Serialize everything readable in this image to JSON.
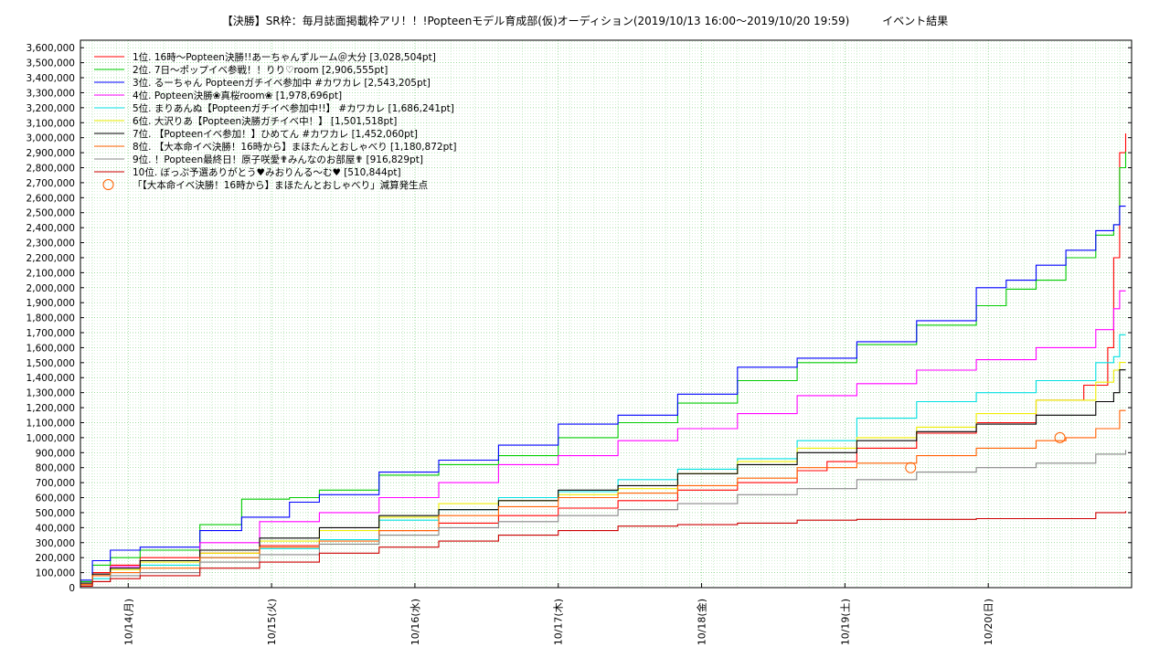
{
  "chart_data": {
    "type": "line",
    "title": "【決勝】SR枠：毎月誌面掲載枠アリ！！!Popteenモデル育成部(仮)オーディション(2019/10/13 16:00～2019/10/20 19:59)　　　イベント結果",
    "xlabel": "",
    "ylabel": "",
    "ylim": [
      0,
      3650000
    ],
    "xlim": [
      "2019/10/13 16:00",
      "2019/10/20 20:00"
    ],
    "x_tick_labels": [
      "10/14(月)",
      "10/15(火)",
      "10/16(水)",
      "10/17(木)",
      "10/18(金)",
      "10/19(土)",
      "10/20(日)"
    ],
    "x_tick_values": [
      8,
      32,
      56,
      80,
      104,
      128,
      152
    ],
    "y_ticks": [
      0,
      100000,
      200000,
      300000,
      400000,
      500000,
      600000,
      700000,
      800000,
      900000,
      1000000,
      1100000,
      1200000,
      1300000,
      1400000,
      1500000,
      1600000,
      1700000,
      1800000,
      1900000,
      2000000,
      2100000,
      2200000,
      2300000,
      2400000,
      2500000,
      2600000,
      2700000,
      2800000,
      2900000,
      3000000,
      3100000,
      3200000,
      3300000,
      3400000,
      3500000,
      3600000
    ],
    "y_tick_labels": [
      "0",
      "100,000",
      "200,000",
      "300,000",
      "400,000",
      "500,000",
      "600,000",
      "700,000",
      "800,000",
      "900,000",
      "1,000,000",
      "1,100,000",
      "1,200,000",
      "1,300,000",
      "1,400,000",
      "1,500,000",
      "1,600,000",
      "1,700,000",
      "1,800,000",
      "1,900,000",
      "2,000,000",
      "2,100,000",
      "2,200,000",
      "2,300,000",
      "2,400,000",
      "2,500,000",
      "2,600,000",
      "2,700,000",
      "2,800,000",
      "2,900,000",
      "3,000,000",
      "3,100,000",
      "3,200,000",
      "3,300,000",
      "3,400,000",
      "3,500,000",
      "3,600,000"
    ],
    "grid": true,
    "legend_position": "top-left",
    "x_unit_note": "x values are hours after 2019/10/13 16:00",
    "series": [
      {
        "name": "1位. 16時～Popteen決勝!!あーちゃんずルーム＠大分 [3,028,504pt]",
        "color": "#ff0000",
        "points": [
          [
            0,
            30000
          ],
          [
            2,
            100000
          ],
          [
            5,
            150000
          ],
          [
            10,
            200000
          ],
          [
            20,
            230000
          ],
          [
            30,
            280000
          ],
          [
            40,
            320000
          ],
          [
            50,
            380000
          ],
          [
            60,
            430000
          ],
          [
            70,
            480000
          ],
          [
            80,
            530000
          ],
          [
            90,
            580000
          ],
          [
            100,
            650000
          ],
          [
            110,
            700000
          ],
          [
            120,
            780000
          ],
          [
            125,
            840000
          ],
          [
            130,
            930000
          ],
          [
            140,
            1030000
          ],
          [
            150,
            1100000
          ],
          [
            160,
            1250000
          ],
          [
            168,
            1350000
          ],
          [
            172,
            1600000
          ],
          [
            173,
            2200000
          ],
          [
            174,
            2900000
          ],
          [
            175,
            3028504
          ]
        ]
      },
      {
        "name": "2位. 7日～ポップイベ参戦！！りり♡room [2,906,555pt]",
        "color": "#00cc00",
        "points": [
          [
            0,
            40000
          ],
          [
            2,
            150000
          ],
          [
            5,
            200000
          ],
          [
            10,
            250000
          ],
          [
            20,
            420000
          ],
          [
            27,
            590000
          ],
          [
            35,
            600000
          ],
          [
            40,
            650000
          ],
          [
            50,
            750000
          ],
          [
            60,
            820000
          ],
          [
            70,
            880000
          ],
          [
            80,
            1000000
          ],
          [
            90,
            1100000
          ],
          [
            100,
            1230000
          ],
          [
            110,
            1380000
          ],
          [
            120,
            1500000
          ],
          [
            130,
            1620000
          ],
          [
            140,
            1750000
          ],
          [
            150,
            1880000
          ],
          [
            155,
            1990000
          ],
          [
            160,
            2050000
          ],
          [
            165,
            2200000
          ],
          [
            170,
            2350000
          ],
          [
            173,
            2420000
          ],
          [
            174,
            2800000
          ],
          [
            175,
            2906555
          ]
        ]
      },
      {
        "name": "3位. るーちゃん Popteenガチイベ参加中 #カワカレ [2,543,205pt]",
        "color": "#0000ff",
        "points": [
          [
            0,
            50000
          ],
          [
            2,
            180000
          ],
          [
            5,
            250000
          ],
          [
            10,
            270000
          ],
          [
            20,
            380000
          ],
          [
            27,
            470000
          ],
          [
            35,
            570000
          ],
          [
            40,
            620000
          ],
          [
            50,
            770000
          ],
          [
            60,
            850000
          ],
          [
            70,
            950000
          ],
          [
            80,
            1090000
          ],
          [
            90,
            1150000
          ],
          [
            100,
            1290000
          ],
          [
            110,
            1470000
          ],
          [
            120,
            1530000
          ],
          [
            130,
            1640000
          ],
          [
            140,
            1780000
          ],
          [
            150,
            2000000
          ],
          [
            155,
            2050000
          ],
          [
            160,
            2150000
          ],
          [
            165,
            2250000
          ],
          [
            170,
            2380000
          ],
          [
            173,
            2420000
          ],
          [
            174,
            2543205
          ],
          [
            175,
            2543205
          ]
        ]
      },
      {
        "name": "4位. Popteen決勝❀真桜room❀ [1,978,696pt]",
        "color": "#ff00ff",
        "points": [
          [
            0,
            20000
          ],
          [
            2,
            80000
          ],
          [
            5,
            140000
          ],
          [
            10,
            180000
          ],
          [
            20,
            300000
          ],
          [
            30,
            440000
          ],
          [
            40,
            500000
          ],
          [
            50,
            600000
          ],
          [
            60,
            700000
          ],
          [
            70,
            820000
          ],
          [
            80,
            880000
          ],
          [
            90,
            980000
          ],
          [
            100,
            1060000
          ],
          [
            110,
            1160000
          ],
          [
            120,
            1280000
          ],
          [
            130,
            1360000
          ],
          [
            140,
            1450000
          ],
          [
            150,
            1520000
          ],
          [
            160,
            1600000
          ],
          [
            170,
            1720000
          ],
          [
            173,
            1860000
          ],
          [
            174,
            1978696
          ],
          [
            175,
            1978696
          ]
        ]
      },
      {
        "name": "5位. まりあんぬ【Popteenガチイベ参加中!!】 #カワカレ [1,686,241pt]",
        "color": "#00e0e0",
        "points": [
          [
            0,
            10000
          ],
          [
            2,
            60000
          ],
          [
            5,
            100000
          ],
          [
            10,
            150000
          ],
          [
            20,
            200000
          ],
          [
            30,
            260000
          ],
          [
            40,
            320000
          ],
          [
            50,
            450000
          ],
          [
            60,
            520000
          ],
          [
            70,
            600000
          ],
          [
            80,
            640000
          ],
          [
            90,
            720000
          ],
          [
            100,
            790000
          ],
          [
            110,
            860000
          ],
          [
            120,
            980000
          ],
          [
            130,
            1130000
          ],
          [
            140,
            1240000
          ],
          [
            150,
            1300000
          ],
          [
            160,
            1380000
          ],
          [
            170,
            1500000
          ],
          [
            173,
            1540000
          ],
          [
            174,
            1686241
          ],
          [
            175,
            1686241
          ]
        ]
      },
      {
        "name": "6位. 大沢りあ【Popteen決勝ガチイベ中！】 [1,501,518pt]",
        "color": "#eeee00",
        "points": [
          [
            0,
            20000
          ],
          [
            2,
            80000
          ],
          [
            5,
            120000
          ],
          [
            10,
            170000
          ],
          [
            20,
            230000
          ],
          [
            30,
            310000
          ],
          [
            40,
            380000
          ],
          [
            50,
            470000
          ],
          [
            60,
            560000
          ],
          [
            70,
            580000
          ],
          [
            80,
            620000
          ],
          [
            90,
            660000
          ],
          [
            100,
            760000
          ],
          [
            110,
            840000
          ],
          [
            120,
            930000
          ],
          [
            130,
            1000000
          ],
          [
            140,
            1070000
          ],
          [
            150,
            1160000
          ],
          [
            160,
            1250000
          ],
          [
            170,
            1370000
          ],
          [
            173,
            1450000
          ],
          [
            174,
            1501518
          ],
          [
            175,
            1501518
          ]
        ]
      },
      {
        "name": "7位. 【Popteenイベ参加！】ひめてん #カワカレ [1,452,060pt]",
        "color": "#000000",
        "points": [
          [
            0,
            30000
          ],
          [
            2,
            90000
          ],
          [
            5,
            130000
          ],
          [
            10,
            180000
          ],
          [
            20,
            250000
          ],
          [
            30,
            330000
          ],
          [
            40,
            400000
          ],
          [
            50,
            480000
          ],
          [
            60,
            520000
          ],
          [
            70,
            580000
          ],
          [
            80,
            650000
          ],
          [
            90,
            680000
          ],
          [
            100,
            760000
          ],
          [
            110,
            820000
          ],
          [
            120,
            900000
          ],
          [
            130,
            980000
          ],
          [
            140,
            1040000
          ],
          [
            150,
            1090000
          ],
          [
            160,
            1150000
          ],
          [
            170,
            1240000
          ],
          [
            173,
            1300000
          ],
          [
            174,
            1452060
          ],
          [
            175,
            1452060
          ]
        ]
      },
      {
        "name": "8位. 【大本命イベ決勝！16時から】まほたんとおしゃべり [1,180,872pt]",
        "color": "#ff6000",
        "points": [
          [
            0,
            20000
          ],
          [
            2,
            80000
          ],
          [
            5,
            100000
          ],
          [
            10,
            130000
          ],
          [
            20,
            200000
          ],
          [
            30,
            270000
          ],
          [
            40,
            310000
          ],
          [
            50,
            380000
          ],
          [
            60,
            480000
          ],
          [
            70,
            540000
          ],
          [
            80,
            600000
          ],
          [
            90,
            630000
          ],
          [
            100,
            680000
          ],
          [
            110,
            730000
          ],
          [
            120,
            800000
          ],
          [
            130,
            830000
          ],
          [
            140,
            880000
          ],
          [
            150,
            930000
          ],
          [
            160,
            980000
          ],
          [
            165,
            1000000
          ],
          [
            170,
            1060000
          ],
          [
            174,
            1180872
          ],
          [
            175,
            1180872
          ]
        ]
      },
      {
        "name": "9位. ！Popteen最終日！原子咲愛✟みんなのお部屋✟ [916,829pt]",
        "color": "#888888",
        "points": [
          [
            0,
            10000
          ],
          [
            2,
            40000
          ],
          [
            5,
            80000
          ],
          [
            10,
            100000
          ],
          [
            20,
            170000
          ],
          [
            30,
            220000
          ],
          [
            40,
            290000
          ],
          [
            50,
            350000
          ],
          [
            60,
            400000
          ],
          [
            70,
            440000
          ],
          [
            80,
            480000
          ],
          [
            90,
            520000
          ],
          [
            100,
            560000
          ],
          [
            110,
            620000
          ],
          [
            120,
            660000
          ],
          [
            130,
            720000
          ],
          [
            140,
            770000
          ],
          [
            150,
            800000
          ],
          [
            160,
            830000
          ],
          [
            170,
            890000
          ],
          [
            175,
            916829
          ]
        ]
      },
      {
        "name": "10位. ぼっぷ予選ありがとう♥みおりんる～む♥ [510,844pt]",
        "color": "#cc0000",
        "points": [
          [
            0,
            10000
          ],
          [
            2,
            40000
          ],
          [
            5,
            60000
          ],
          [
            10,
            80000
          ],
          [
            20,
            130000
          ],
          [
            30,
            170000
          ],
          [
            40,
            230000
          ],
          [
            50,
            270000
          ],
          [
            60,
            310000
          ],
          [
            70,
            350000
          ],
          [
            80,
            380000
          ],
          [
            90,
            410000
          ],
          [
            100,
            420000
          ],
          [
            110,
            430000
          ],
          [
            120,
            450000
          ],
          [
            130,
            455000
          ],
          [
            140,
            455000
          ],
          [
            150,
            460000
          ],
          [
            165,
            460000
          ],
          [
            170,
            500000
          ],
          [
            175,
            510844
          ]
        ]
      }
    ],
    "markers": {
      "label": "「【大本命イベ決勝！16時から】まほたんとおしゃべり」減算発生点",
      "color": "#ff6000",
      "points": [
        [
          139,
          800000
        ],
        [
          164,
          1000000
        ]
      ]
    }
  }
}
